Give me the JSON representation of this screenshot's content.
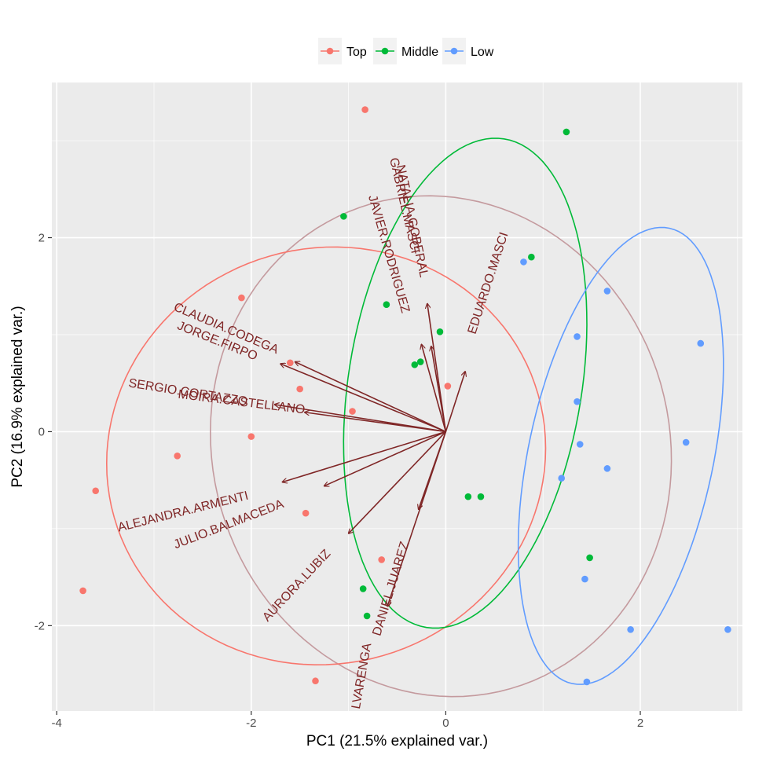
{
  "chart_data": {
    "type": "scatter",
    "subtype": "pca-biplot",
    "xlabel": "PC1 (21.5% explained var.)",
    "ylabel": "PC2 (16.9% explained var.)",
    "xlim": [
      -4.05,
      3.05
    ],
    "ylim": [
      -2.88,
      3.6
    ],
    "xticks": [
      -4,
      -2,
      0,
      2
    ],
    "yticks": [
      -2,
      0,
      2
    ],
    "tick_labels_x": [
      "-4",
      "-2",
      "0",
      "2"
    ],
    "tick_labels_y": [
      "-2",
      "0",
      "2"
    ],
    "grid": true,
    "legend_position": "top",
    "colors": {
      "background": "#ebebeb",
      "grid": "#ffffff",
      "arrow": "#7f2626",
      "overall_ellipse": "#c49a9e"
    },
    "legend": [
      {
        "name": "Top",
        "color": "#f8766d"
      },
      {
        "name": "Middle",
        "color": "#00ba38"
      },
      {
        "name": "Low",
        "color": "#619cff"
      }
    ],
    "series": [
      {
        "name": "Top",
        "color": "#f8766d",
        "points": [
          [
            -0.83,
            3.32
          ],
          [
            -2.1,
            1.38
          ],
          [
            -1.6,
            0.71
          ],
          [
            -1.5,
            0.44
          ],
          [
            -0.96,
            0.21
          ],
          [
            -2.0,
            -0.05
          ],
          [
            -2.76,
            -0.25
          ],
          [
            -3.6,
            -0.61
          ],
          [
            -1.44,
            -0.84
          ],
          [
            -0.66,
            -1.32
          ],
          [
            -3.73,
            -1.64
          ],
          [
            -1.34,
            -2.57
          ],
          [
            0.02,
            0.47
          ]
        ],
        "ellipse": {
          "cx": -1.23,
          "cy": -0.25,
          "rx": 2.27,
          "ry": 2.14,
          "angle": 19
        }
      },
      {
        "name": "Middle",
        "color": "#00ba38",
        "points": [
          [
            1.24,
            3.09
          ],
          [
            -1.05,
            2.22
          ],
          [
            -0.61,
            1.31
          ],
          [
            -0.06,
            1.03
          ],
          [
            -0.32,
            0.69
          ],
          [
            -0.26,
            0.72
          ],
          [
            0.88,
            1.8
          ],
          [
            0.23,
            -0.67
          ],
          [
            0.36,
            -0.67
          ],
          [
            1.48,
            -1.3
          ],
          [
            -0.85,
            -1.62
          ],
          [
            -0.81,
            -1.9
          ]
        ],
        "ellipse": {
          "cx": 0.2,
          "cy": 0.5,
          "rx": 1.2,
          "ry": 2.55,
          "angle": -9
        }
      },
      {
        "name": "Low",
        "color": "#619cff",
        "points": [
          [
            0.8,
            1.75
          ],
          [
            1.66,
            1.45
          ],
          [
            1.35,
            0.98
          ],
          [
            2.62,
            0.91
          ],
          [
            1.35,
            0.31
          ],
          [
            1.38,
            -0.13
          ],
          [
            2.47,
            -0.11
          ],
          [
            1.66,
            -0.38
          ],
          [
            1.19,
            -0.48
          ],
          [
            1.43,
            -1.52
          ],
          [
            1.9,
            -2.04
          ],
          [
            2.9,
            -2.04
          ],
          [
            1.45,
            -2.58
          ]
        ],
        "ellipse": {
          "cx": 1.8,
          "cy": -0.25,
          "rx": 0.95,
          "ry": 2.4,
          "angle": -12
        }
      }
    ],
    "overall_ellipse": {
      "cx": -0.05,
      "cy": -0.15,
      "rx": 2.35,
      "ry": 2.6,
      "angle": 16
    },
    "loadings": [
      {
        "label": "NATALIA.GOBERAL",
        "x": -0.19,
        "y": 1.32,
        "label_x": -0.35,
        "label_y": 2.17,
        "angle": 78
      },
      {
        "label": "GABRIEL.MASCI",
        "x": -0.25,
        "y": 0.9,
        "label_x": -0.43,
        "label_y": 2.33,
        "angle": 77
      },
      {
        "label": "JAVIER.RODRIGUEZ",
        "x": -0.15,
        "y": 0.88,
        "label_x": -0.59,
        "label_y": 1.83,
        "angle": 74
      },
      {
        "label": "EDUARDO.MASCI",
        "x": 0.2,
        "y": 0.62,
        "label_x": 0.44,
        "label_y": 1.53,
        "angle": -72
      },
      {
        "label": "CLAUDIA.CODEGA",
        "x": -1.55,
        "y": 0.72,
        "label_x": -2.26,
        "label_y": 1.06,
        "angle": 23
      },
      {
        "label": "JORGE.FIRPO",
        "x": -1.7,
        "y": 0.7,
        "label_x": -2.35,
        "label_y": 0.93,
        "angle": 22
      },
      {
        "label": "SERGIO.CORTAZZO",
        "x": -1.76,
        "y": 0.28,
        "label_x": -2.65,
        "label_y": 0.4,
        "angle": 9
      },
      {
        "label": "MOIRA.CASTELLANO",
        "x": -1.45,
        "y": 0.2,
        "label_x": -2.1,
        "label_y": 0.3,
        "angle": 7
      },
      {
        "label": "ALEJANDRA.ARMENTI",
        "x": -1.68,
        "y": -0.52,
        "label_x": -2.7,
        "label_y": -0.83,
        "angle": -14
      },
      {
        "label": "JULIO.BALMACEDA",
        "x": -1.25,
        "y": -0.56,
        "label_x": -2.23,
        "label_y": -0.96,
        "angle": -21
      },
      {
        "label": "AURORA.LUBIZ",
        "x": -1.0,
        "y": -1.05,
        "label_x": -1.53,
        "label_y": -1.59,
        "angle": -47
      },
      {
        "label": "DANIEL.JUAREZ",
        "x": -0.28,
        "y": -0.8,
        "label_x": -0.56,
        "label_y": -1.62,
        "angle": -73
      },
      {
        "label": "LVARENGA",
        "x": -0.6,
        "y": -1.8,
        "label_x": -0.86,
        "label_y": -2.52,
        "angle": -80
      }
    ]
  }
}
